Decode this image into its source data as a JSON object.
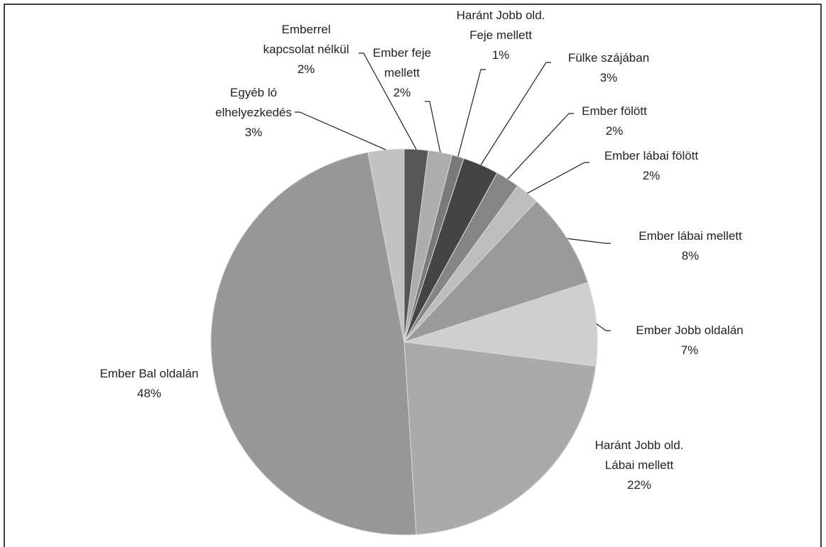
{
  "chart_data": {
    "type": "pie",
    "categories": [
      "Emberrel kapcsolat nélkül",
      "Ember feje mellett",
      "Haránt Jobb old. Feje mellett",
      "Fülke szájában",
      "Ember fölött",
      "Ember lábai fölött",
      "Ember lábai mellett",
      "Ember Jobb oldalán",
      "Haránt Jobb old. Lábai mellett",
      "Ember Bal oldalán",
      "Egyéb ló elhelyezkedés"
    ],
    "values": [
      2,
      2,
      1,
      3,
      2,
      2,
      8,
      7,
      22,
      48,
      3
    ],
    "value_labels": [
      "2%",
      "2%",
      "1%",
      "3%",
      "2%",
      "2%",
      "8%",
      "7%",
      "22%",
      "48%",
      "3%"
    ],
    "colors": [
      "#565656",
      "#adadad",
      "#7a7a7a",
      "#444444",
      "#858585",
      "#bdbdbd",
      "#9a9a9a",
      "#cfcfcf",
      "#aaaaaa",
      "#979797",
      "#c2c2c2"
    ]
  }
}
